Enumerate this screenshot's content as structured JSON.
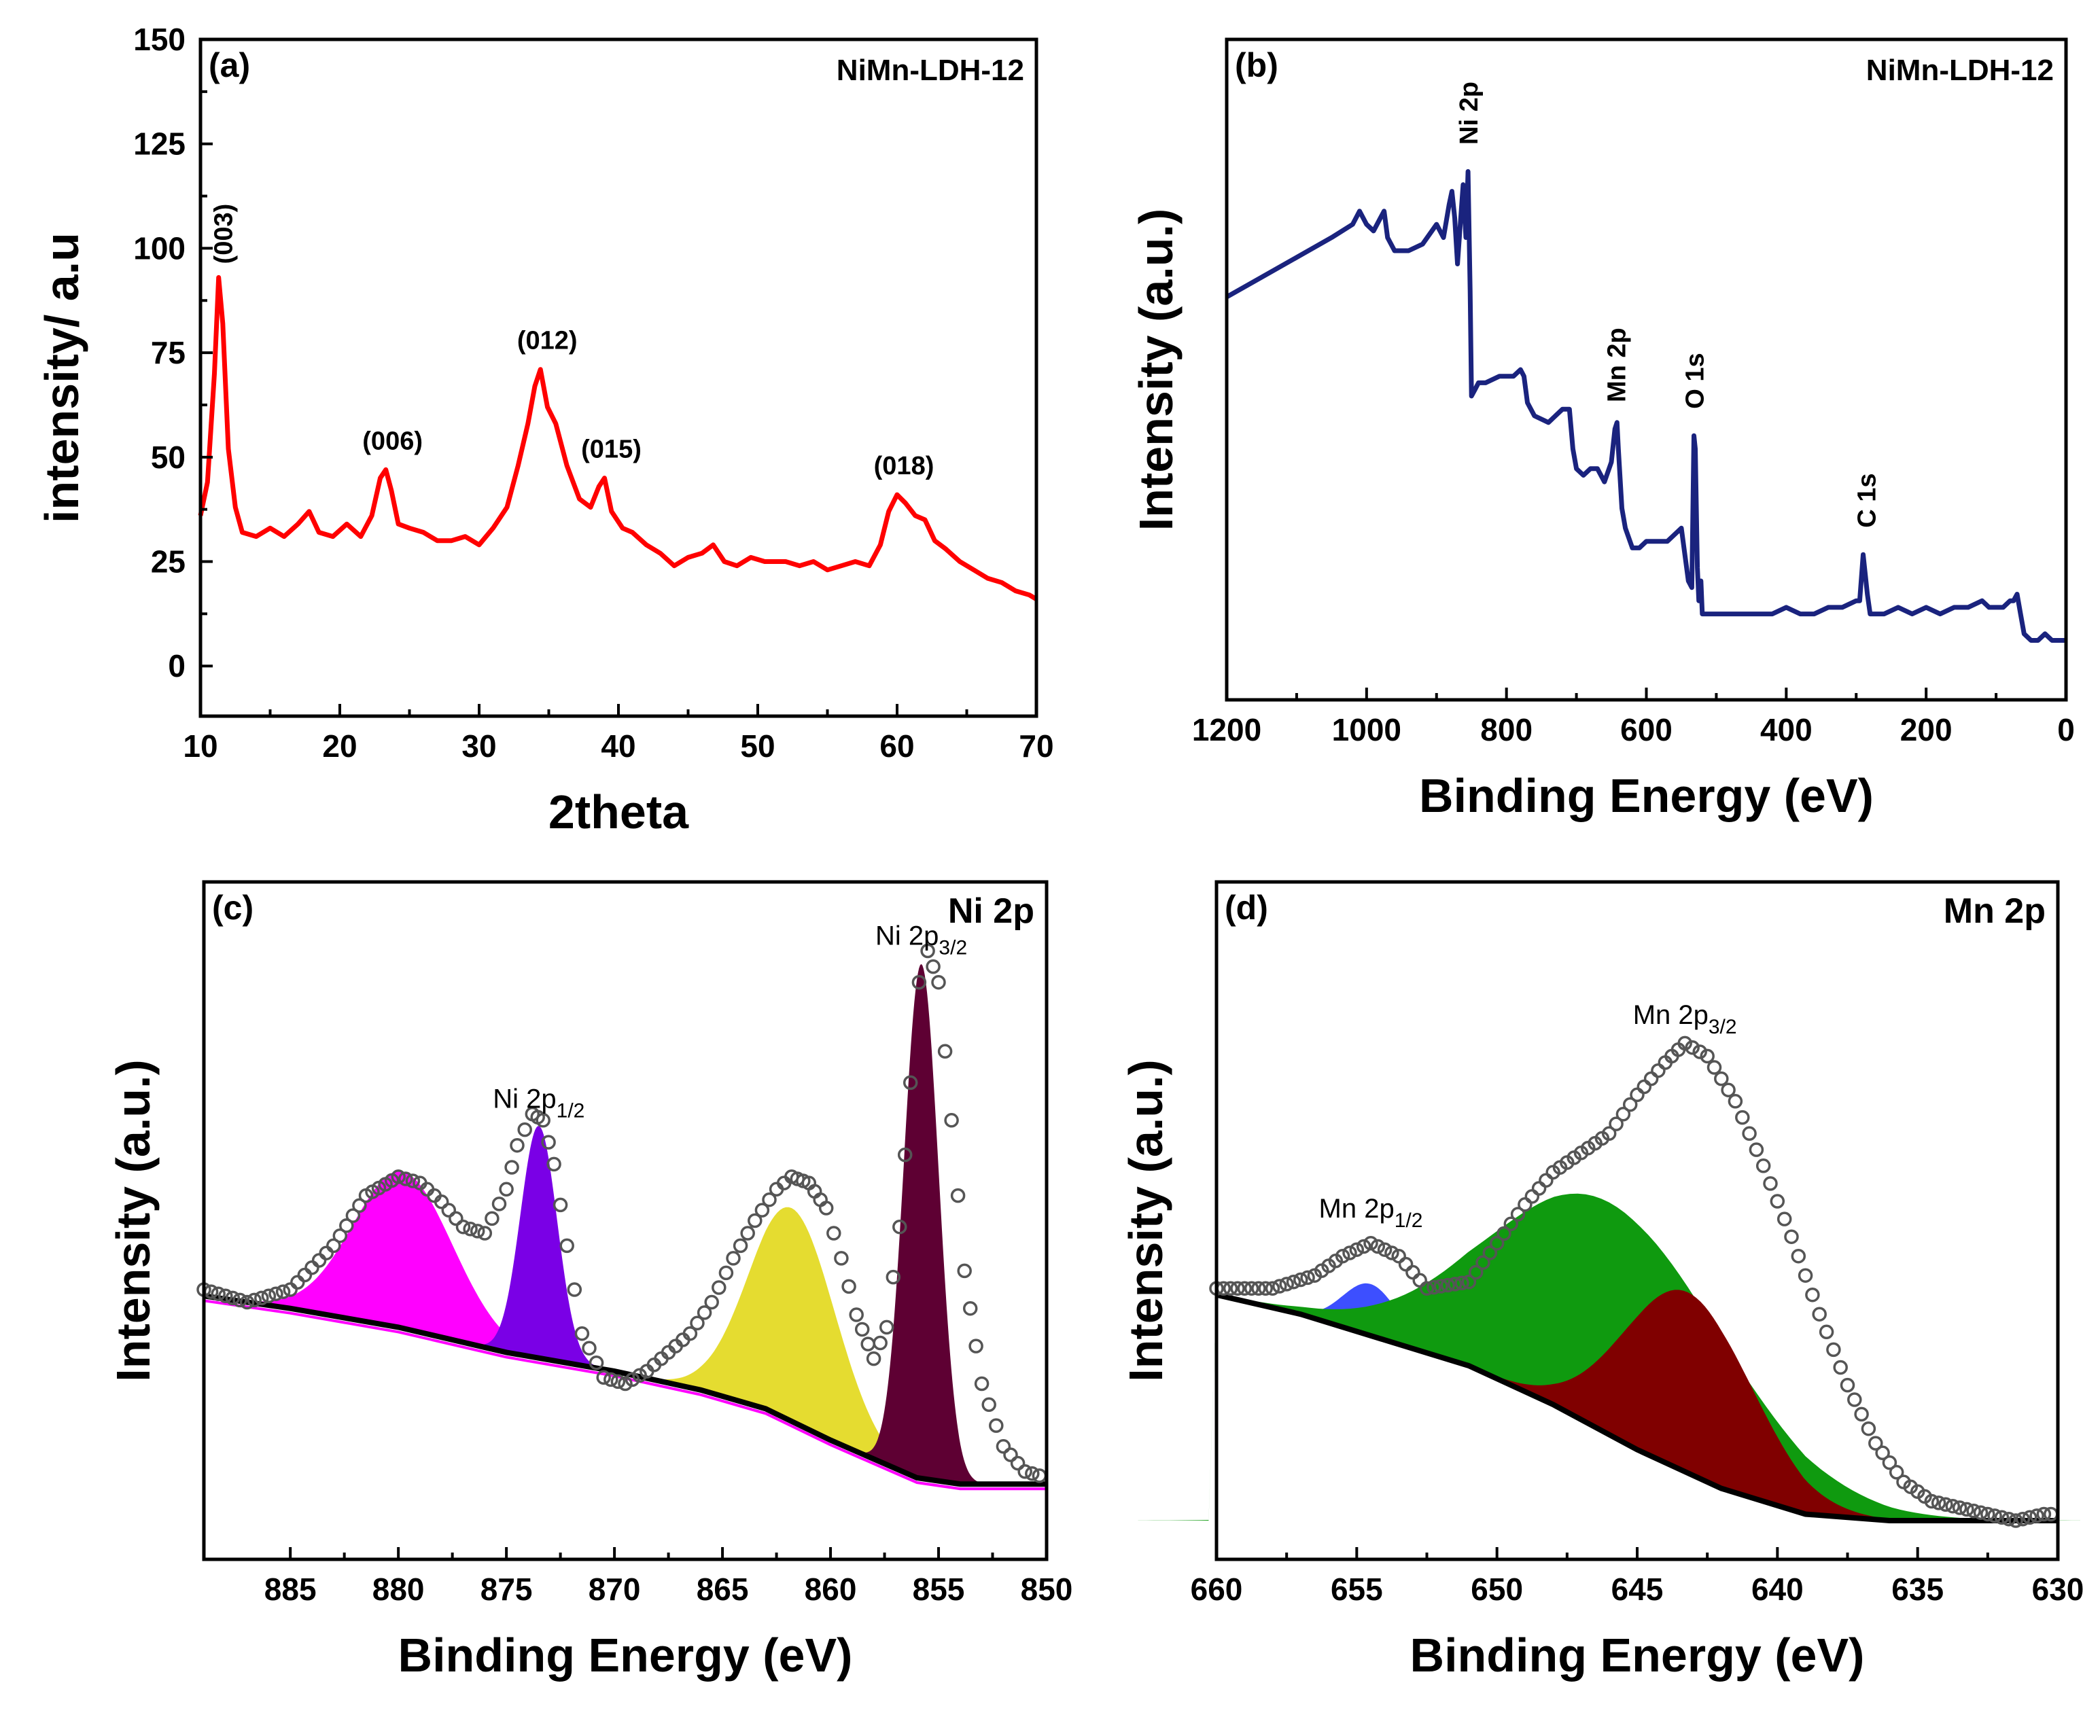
{
  "chart_data": [
    {
      "id": "a",
      "type": "line",
      "panel_label": "(a)",
      "title": "NiMn-LDH-12",
      "xlabel": "2theta",
      "ylabel": "intensity/ a.u",
      "xlim": [
        10,
        70
      ],
      "ylim": [
        -12,
        150
      ],
      "x_ticks": [
        10,
        20,
        30,
        40,
        50,
        60,
        70
      ],
      "y_ticks": [
        0,
        25,
        50,
        75,
        100,
        125,
        150
      ],
      "series": [
        {
          "color": "#ff0000",
          "x": [
            10,
            10.5,
            11,
            11.3,
            11.6,
            12,
            12.5,
            13,
            14,
            15,
            16,
            17,
            17.8,
            18.5,
            19.5,
            20.5,
            21.5,
            22.3,
            22.9,
            23.3,
            23.7,
            24.2,
            25,
            26,
            27,
            28,
            29,
            30,
            31,
            32,
            32.8,
            33.5,
            34,
            34.4,
            34.9,
            35.5,
            36.3,
            37.2,
            38,
            38.6,
            39,
            39.5,
            40.3,
            41,
            42,
            43,
            44,
            45,
            46,
            46.8,
            47.6,
            48.5,
            49.5,
            50.5,
            52,
            53,
            54,
            55,
            56,
            57,
            58,
            58.8,
            59.4,
            60,
            60.6,
            61.3,
            62,
            62.7,
            63.5,
            64.5,
            65.5,
            66.5,
            67.5,
            68.5,
            69.5,
            70
          ],
          "y": [
            36,
            44,
            70,
            93,
            82,
            52,
            38,
            32,
            31,
            33,
            31,
            34,
            37,
            32,
            31,
            34,
            31,
            36,
            45,
            47,
            42,
            34,
            33,
            32,
            30,
            30,
            31,
            29,
            33,
            38,
            48,
            58,
            67,
            71,
            62,
            58,
            48,
            40,
            38,
            43,
            45,
            37,
            33,
            32,
            29,
            27,
            24,
            26,
            27,
            29,
            25,
            24,
            26,
            25,
            25,
            24,
            25,
            23,
            24,
            25,
            24,
            29,
            37,
            41,
            39,
            36,
            35,
            30,
            28,
            25,
            23,
            21,
            20,
            18,
            17,
            16
          ]
        }
      ],
      "annotations": [
        {
          "text": "(003)",
          "x": 11.3,
          "y": 93
        },
        {
          "text": "(006)",
          "x": 23.3,
          "y": 47
        },
        {
          "text": "(012)",
          "x": 34.4,
          "y": 71
        },
        {
          "text": "(015)",
          "x": 39,
          "y": 45
        },
        {
          "text": "(018)",
          "x": 60,
          "y": 41
        }
      ]
    },
    {
      "id": "b",
      "type": "line",
      "panel_label": "(b)",
      "title": "NiMn-LDH-12",
      "title_color": "#1a237e",
      "xlabel": "Binding Energy (eV)",
      "ylabel": "Intensity (a.u.)",
      "xlim": [
        1200,
        0
      ],
      "ylim": [
        0,
        100
      ],
      "x_ticks": [
        1200,
        1000,
        800,
        600,
        400,
        200,
        0
      ],
      "y_ticks": [],
      "series": [
        {
          "color": "#1a237e",
          "x": [
            1200,
            1150,
            1100,
            1050,
            1020,
            1010,
            1000,
            990,
            980,
            975,
            970,
            960,
            940,
            920,
            900,
            890,
            882,
            878,
            874,
            870,
            866,
            862,
            858,
            855,
            852,
            850,
            845,
            840,
            830,
            810,
            790,
            780,
            775,
            770,
            760,
            740,
            720,
            710,
            705,
            700,
            690,
            680,
            670,
            660,
            650,
            645,
            642,
            640,
            635,
            630,
            620,
            610,
            600,
            590,
            580,
            570,
            560,
            550,
            540,
            535,
            532,
            530,
            527,
            525,
            522,
            520,
            500,
            480,
            460,
            440,
            420,
            400,
            380,
            360,
            340,
            320,
            300,
            295,
            290,
            287,
            284,
            280,
            275,
            260,
            240,
            220,
            200,
            180,
            160,
            140,
            120,
            110,
            100,
            90,
            80,
            75,
            70,
            65,
            60,
            50,
            40,
            30,
            20,
            10,
            0
          ],
          "y": [
            61,
            64,
            67,
            70,
            72,
            74,
            72,
            71,
            73,
            74,
            70,
            68,
            68,
            69,
            72,
            70,
            75,
            77,
            73,
            66,
            72,
            78,
            70,
            80,
            62,
            46,
            47,
            48,
            48,
            49,
            49,
            50,
            49,
            45,
            43,
            42,
            44,
            44,
            38,
            35,
            34,
            35,
            35,
            33,
            36,
            41,
            42,
            38,
            29,
            26,
            23,
            23,
            24,
            24,
            24,
            24,
            25,
            26,
            18,
            17,
            40,
            38,
            20,
            15,
            18,
            13,
            13,
            13,
            13,
            13,
            13,
            14,
            13,
            13,
            14,
            14,
            15,
            15,
            22,
            19,
            16,
            13,
            13,
            13,
            14,
            13,
            14,
            13,
            14,
            14,
            15,
            14,
            14,
            14,
            15,
            15,
            16,
            13,
            10,
            9,
            9,
            10,
            9,
            9,
            9
          ]
        }
      ],
      "annotations": [
        {
          "text": "Ni 2p",
          "x": 853,
          "y": 82
        },
        {
          "text": "Mn 2p",
          "x": 642,
          "y": 43
        },
        {
          "text": "O 1s",
          "x": 530,
          "y": 42
        },
        {
          "text": "C 1s",
          "x": 284,
          "y": 24
        }
      ]
    },
    {
      "id": "c",
      "type": "area",
      "panel_label": "(c)",
      "title": "Ni 2p",
      "xlabel": "Binding Energy (eV)",
      "ylabel": "Intensity (a.u.)",
      "xlim": [
        889,
        850
      ],
      "ylim": [
        -8,
        100
      ],
      "x_ticks": [
        885,
        880,
        875,
        870,
        865,
        860,
        855,
        850
      ],
      "y_ticks": [],
      "background": {
        "color": "#000000",
        "x": [
          889,
          885,
          880,
          875,
          870,
          866,
          863,
          860,
          858,
          856,
          854,
          852,
          850
        ],
        "y": [
          34,
          32,
          29,
          25,
          22,
          19,
          16,
          11,
          8,
          5,
          4,
          4,
          4
        ]
      },
      "components": [
        {
          "color": "#ff00ff",
          "center": 879.8,
          "height": 25,
          "width": 2.3
        },
        {
          "color": "#7a00e6",
          "center": 873.5,
          "height": 37,
          "width": 0.85
        },
        {
          "color": "#e5dc30",
          "center": 861.8,
          "height": 34,
          "width": 2.0
        },
        {
          "color": "#5e0033",
          "center": 855.8,
          "height": 82,
          "width": 0.8
        }
      ],
      "experimental": {
        "color": "#555555",
        "x": [
          889,
          887,
          885,
          883,
          881.5,
          880,
          879,
          878,
          877,
          876,
          875,
          874.5,
          873.8,
          873.3,
          872.8,
          872.2,
          871.5,
          870.5,
          869.5,
          868.5,
          867.5,
          866.5,
          865.5,
          864.5,
          863.5,
          862.5,
          861.8,
          861,
          860.2,
          859.5,
          858.8,
          858,
          857.4,
          856.8,
          856.3,
          855.9,
          855.5,
          855,
          854.4,
          853.8,
          853,
          852,
          851,
          850
        ],
        "y": [
          35,
          33,
          35,
          42,
          50,
          53,
          52,
          49,
          45,
          44,
          51,
          58,
          63,
          62,
          55,
          42,
          28,
          21,
          20,
          22,
          25,
          28,
          33,
          40,
          46,
          51,
          53,
          52,
          48,
          40,
          31,
          24,
          29,
          45,
          68,
          84,
          89,
          84,
          62,
          38,
          20,
          10,
          6,
          5
        ]
      },
      "annotations": [
        {
          "text": "Ni 2p",
          "sub": "1/2",
          "x": 873.5,
          "y": 64
        },
        {
          "text": "Ni 2p",
          "sub": "3/2",
          "x": 855.8,
          "y": 90
        }
      ]
    },
    {
      "id": "d",
      "type": "area",
      "panel_label": "(d)",
      "title": "Mn 2p",
      "xlabel": "Binding Energy (eV)",
      "ylabel": "Intensity (a.u.)",
      "xlim": [
        660,
        630
      ],
      "ylim": [
        -5,
        100
      ],
      "x_ticks": [
        660,
        655,
        650,
        645,
        640,
        635,
        630
      ],
      "y_ticks": [],
      "background": {
        "color": "#000000",
        "x": [
          660,
          657,
          654,
          651,
          648,
          645,
          642,
          639,
          636,
          633,
          630
        ],
        "y": [
          36,
          33,
          29,
          25,
          19,
          12,
          6,
          2,
          1,
          1,
          1
        ]
      },
      "components": [
        {
          "color": "#3d4fff",
          "center": 654.5,
          "height": 8,
          "width": 1.0
        },
        {
          "color": "#0f9a0f",
          "center": 646,
          "height": 36,
          "width": 4.2
        },
        {
          "color": "#800000",
          "center": 643.2,
          "height": 28,
          "width": 2.3
        }
      ],
      "experimental": {
        "color": "#555555",
        "x": [
          660,
          658,
          656.5,
          655.5,
          654.5,
          653.5,
          652.5,
          651,
          650,
          649,
          648,
          647,
          646,
          645,
          644,
          643.3,
          642.5,
          641.5,
          640.5,
          639.5,
          638.5,
          637.5,
          636.5,
          635.5,
          634.5,
          633.5,
          632.5,
          631.5,
          630.5,
          630
        ],
        "y": [
          37,
          37,
          39,
          42,
          44,
          42,
          37,
          38,
          44,
          50,
          55,
          58,
          61,
          67,
          72,
          75,
          73,
          66,
          56,
          45,
          33,
          22,
          13,
          7,
          4,
          3,
          2,
          1,
          2,
          2
        ]
      },
      "annotations": [
        {
          "text": "Mn 2p",
          "sub": "1/2",
          "x": 654.5,
          "y": 48
        },
        {
          "text": "Mn 2p",
          "sub": "3/2",
          "x": 643.3,
          "y": 78
        }
      ]
    }
  ]
}
